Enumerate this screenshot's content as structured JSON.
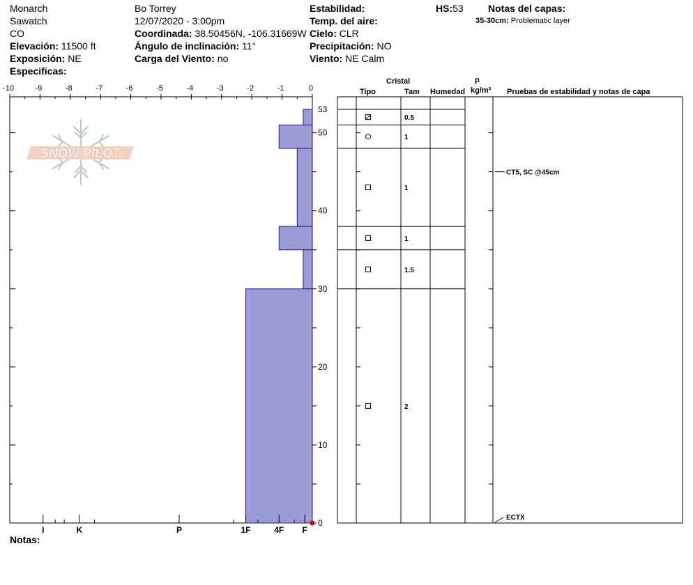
{
  "header": {
    "location": "Monarch",
    "range": "Sawatch",
    "state": "CO",
    "elevation_label": "Elevación:",
    "elevation_value": "11500 ft",
    "aspect_label": "Exposición:",
    "aspect_value": "NE",
    "specifics_label": "Especificas:",
    "observer": "Bo Torrey",
    "datetime": "12/07/2020 - 3:00pm",
    "coord_label": "Coordinada:",
    "coord_value": "38.50456N, -106.31669W",
    "slope_label": "Ángulo de inclinación:",
    "slope_value": "11°",
    "wind_load_label": "Carga del Viento:",
    "wind_load_value": "no",
    "stability_label": "Estabilidad:",
    "air_temp_label": "Temp. del aire:",
    "sky_label": "Cielo:",
    "sky_value": "CLR",
    "precip_label": "Precipitación:",
    "precip_value": "NO",
    "wind_label": "Viento:",
    "wind_value": "NE Calm",
    "hs_label": "HS:",
    "hs_value": "53",
    "layer_notes_title": "Notas del capas:",
    "layer_note_range": "35-30cm:",
    "layer_note_text": "Problematic layer"
  },
  "logo": {
    "text": "SNOW PILOT"
  },
  "footer": {
    "notes_label": "Notas:"
  },
  "table": {
    "crystal_header": "Cristal",
    "type_header": "Tipo",
    "size_header": "Tam",
    "moisture_header": "Humedad",
    "density_symbol": "ρ",
    "density_unit": "kg/m³",
    "tests_header": "Pruebas de estabilidad y notas de capa",
    "test_notes": [
      {
        "text": "CT5, SC @45cm",
        "height": 45
      },
      {
        "text": "ECTX",
        "height": 0
      }
    ]
  },
  "chart_data": {
    "type": "snow_profile_hardness",
    "hardness_axis": {
      "min": -10,
      "max": 0,
      "ticks": [
        "-10",
        "-9",
        "-8",
        "-7",
        "-6",
        "-5",
        "-4",
        "-3",
        "-2",
        "-1",
        "0"
      ]
    },
    "hardness_labels": [
      {
        "label": "I",
        "value": -8.9
      },
      {
        "label": "K",
        "value": -7.7
      },
      {
        "label": "P",
        "value": -4.4
      },
      {
        "label": "1F",
        "value": -2.2
      },
      {
        "label": "4F",
        "value": -1.1
      },
      {
        "label": "F",
        "value": -0.25
      }
    ],
    "height_axis": {
      "min": 0,
      "max": 53,
      "ticks": [
        0,
        10,
        20,
        30,
        40,
        50,
        53
      ]
    },
    "layers": [
      {
        "bottom": 51,
        "top": 53,
        "hardness": -0.3,
        "grain": "faceted-rounded",
        "size": "0.5"
      },
      {
        "bottom": 48,
        "top": 51,
        "hardness": -1.1,
        "grain": "precipitation-particle",
        "size": "1"
      },
      {
        "bottom": 38,
        "top": 48,
        "hardness": -0.5,
        "grain": "faceted",
        "size": "1"
      },
      {
        "bottom": 35,
        "top": 38,
        "hardness": -1.1,
        "grain": "faceted",
        "size": "1"
      },
      {
        "bottom": 30,
        "top": 35,
        "hardness": -0.3,
        "grain": "faceted",
        "size": "1.5"
      },
      {
        "bottom": 0,
        "top": 30,
        "hardness": -2.2,
        "grain": "faceted",
        "size": "2"
      }
    ],
    "colors": {
      "fill": "#9b9bd6",
      "stroke": "#1a1a8c",
      "marker": "#cc0000"
    }
  }
}
